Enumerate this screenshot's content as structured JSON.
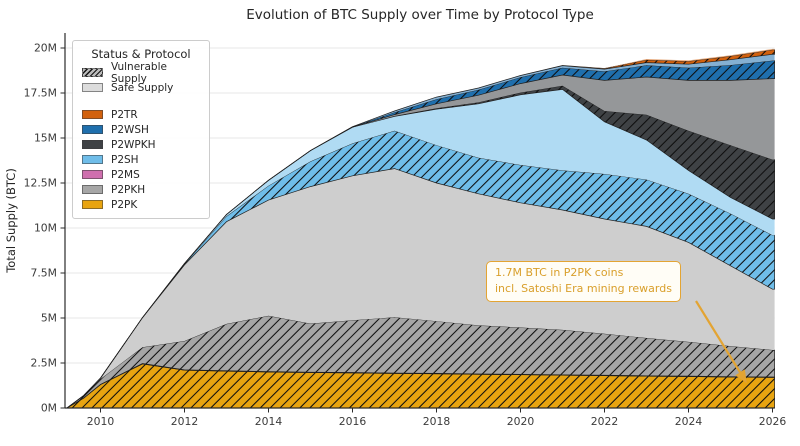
{
  "chart": {
    "title": "Evolution of BTC Supply over Time by Protocol Type",
    "ylabel": "Total Supply (BTC)",
    "legend_title": "Status & Protocol",
    "annotation": {
      "line1": "1.7M BTC in P2PK coins",
      "line2": "incl. Satoshi Era mining rewards"
    }
  },
  "chart_data": {
    "type": "area",
    "stacked": true,
    "title": "Evolution of BTC Supply over Time by Protocol Type",
    "xlabel": "",
    "ylabel": "Total Supply (BTC)",
    "unit": "million BTC",
    "grid": "horizontal",
    "legend_position": "upper-left",
    "x_range": [
      2009.15,
      2026.05
    ],
    "y_range": [
      0,
      20.8
    ],
    "x_ticks": {
      "values": [
        2010,
        2012,
        2014,
        2016,
        2018,
        2020,
        2022,
        2024,
        2026
      ],
      "labels": [
        "2010",
        "2012",
        "2014",
        "2016",
        "2018",
        "2020",
        "2022",
        "2024",
        "2026"
      ]
    },
    "y_ticks": {
      "values": [
        0,
        2.5,
        5,
        7.5,
        10,
        12.5,
        15,
        17.5,
        20
      ],
      "labels": [
        "0M",
        "2.5M",
        "5M",
        "7.5M",
        "10M",
        "12.5M",
        "15M",
        "17.5M",
        "20M"
      ]
    },
    "statuses": [
      {
        "name": "Vulnerable Supply",
        "style": "hatched"
      },
      {
        "name": "Safe Supply",
        "style": "light",
        "swatch_color": "#dcdcdc"
      }
    ],
    "protocols": [
      {
        "name": "P2TR",
        "color": "#d2610e"
      },
      {
        "name": "P2WSH",
        "color": "#1f6fad"
      },
      {
        "name": "P2WPKH",
        "color": "#3f4245"
      },
      {
        "name": "P2SH",
        "color": "#6fbde9"
      },
      {
        "name": "P2MS",
        "color": "#cf6fae"
      },
      {
        "name": "P2PKH",
        "color": "#a6a6a6"
      },
      {
        "name": "P2PK",
        "color": "#e8a410"
      }
    ],
    "years": [
      2009.2,
      2009.6,
      2010,
      2011,
      2012,
      2013,
      2014,
      2015,
      2016,
      2017,
      2018,
      2019,
      2020,
      2021,
      2022,
      2023,
      2024,
      2025,
      2026
    ],
    "series": [
      {
        "protocol": "P2PK",
        "status": "vulnerable",
        "values": [
          0,
          0.55,
          1.3,
          2.45,
          2.1,
          2.05,
          2.0,
          1.97,
          1.95,
          1.92,
          1.9,
          1.87,
          1.85,
          1.82,
          1.8,
          1.77,
          1.75,
          1.72,
          1.7
        ]
      },
      {
        "protocol": "P2MS",
        "status": "vulnerable",
        "values": [
          0,
          0.005,
          0.01,
          0.02,
          0.02,
          0.02,
          0.02,
          0.02,
          0.02,
          0.02,
          0.02,
          0.02,
          0.02,
          0.02,
          0.02,
          0.02,
          0.02,
          0.02,
          0.02
        ]
      },
      {
        "protocol": "P2PKH",
        "status": "vulnerable",
        "values": [
          0,
          0.12,
          0.3,
          0.9,
          1.6,
          2.6,
          3.1,
          2.7,
          2.9,
          3.1,
          2.9,
          2.7,
          2.6,
          2.5,
          2.3,
          2.1,
          1.9,
          1.7,
          1.5
        ]
      },
      {
        "protocol": "P2PKH",
        "status": "safe",
        "values": [
          0,
          0.02,
          0.05,
          1.65,
          4.23,
          5.68,
          6.43,
          7.61,
          8.03,
          8.26,
          7.68,
          7.31,
          6.93,
          6.66,
          6.38,
          6.2,
          5.53,
          4.46,
          3.38
        ]
      },
      {
        "protocol": "P2SH",
        "status": "vulnerable",
        "values": [
          0,
          0,
          0,
          0,
          0.05,
          0.3,
          0.8,
          1.4,
          1.8,
          2.1,
          2.1,
          2.0,
          2.1,
          2.2,
          2.5,
          2.6,
          2.7,
          2.9,
          3.0
        ]
      },
      {
        "protocol": "P2SH",
        "status": "safe",
        "values": [
          0,
          0,
          0,
          0,
          0.03,
          0.1,
          0.3,
          0.6,
          0.9,
          0.8,
          2.0,
          3.0,
          3.9,
          4.5,
          2.9,
          2.2,
          1.3,
          0.9,
          0.9
        ]
      },
      {
        "protocol": "P2WPKH",
        "status": "vulnerable",
        "values": [
          0,
          0,
          0,
          0,
          0,
          0,
          0,
          0,
          0,
          0.02,
          0.05,
          0.08,
          0.12,
          0.2,
          0.6,
          1.4,
          2.2,
          2.9,
          3.3
        ]
      },
      {
        "protocol": "P2WPKH",
        "status": "safe",
        "values": [
          0,
          0,
          0,
          0,
          0,
          0,
          0,
          0,
          0,
          0.08,
          0.25,
          0.4,
          0.5,
          0.6,
          1.7,
          2.1,
          2.8,
          3.6,
          4.5
        ]
      },
      {
        "protocol": "P2WSH",
        "status": "vulnerable",
        "values": [
          0,
          0,
          0,
          0,
          0,
          0,
          0,
          0,
          0.02,
          0.12,
          0.25,
          0.3,
          0.35,
          0.4,
          0.5,
          0.65,
          0.7,
          0.85,
          1.0
        ]
      },
      {
        "protocol": "P2WSH",
        "status": "safe",
        "values": [
          0,
          0,
          0,
          0,
          0,
          0,
          0,
          0,
          0.01,
          0.08,
          0.12,
          0.1,
          0.1,
          0.12,
          0.12,
          0.15,
          0.2,
          0.3,
          0.35
        ]
      },
      {
        "protocol": "P2TR",
        "status": "vulnerable",
        "values": [
          0,
          0,
          0,
          0,
          0,
          0,
          0,
          0,
          0,
          0,
          0,
          0,
          0,
          0.01,
          0.04,
          0.15,
          0.16,
          0.2,
          0.25
        ]
      },
      {
        "protocol": "P2TR",
        "status": "safe",
        "values": [
          0,
          0,
          0,
          0,
          0,
          0,
          0,
          0,
          0,
          0,
          0,
          0,
          0,
          0,
          0.01,
          0.05,
          0.05,
          0.05,
          0.05
        ]
      }
    ],
    "annotation": {
      "text": [
        "1.7M BTC in P2PK coins",
        "incl. Satoshi Era mining rewards"
      ],
      "color": "#e3a433",
      "points_to": "P2PK area near 2025"
    }
  }
}
